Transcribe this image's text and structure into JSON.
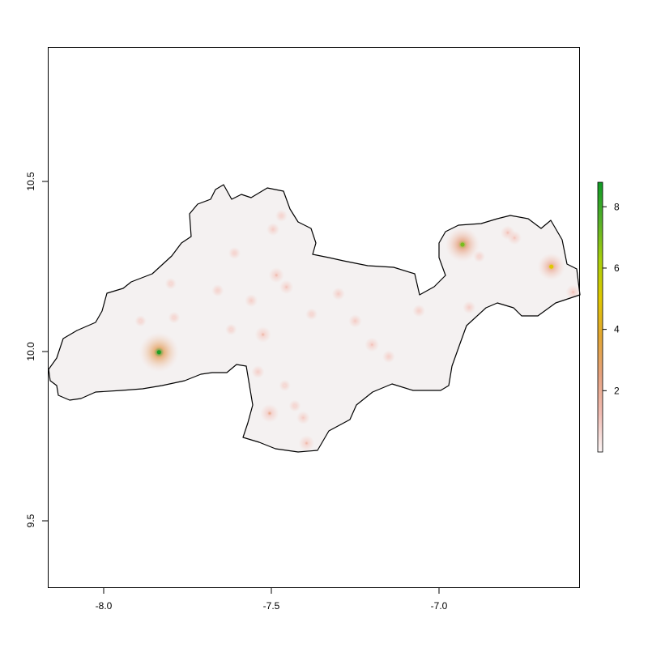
{
  "map": {
    "x_axis": {
      "range": [
        -8.16,
        -6.57
      ],
      "ticks": [
        {
          "value": -8.0,
          "label": "-8.0"
        },
        {
          "value": -7.5,
          "label": "-7.5"
        },
        {
          "value": -7.0,
          "label": "-7.0"
        }
      ]
    },
    "y_axis": {
      "range": [
        9.3,
        10.89
      ],
      "ticks": [
        {
          "value": 9.5,
          "label": "9.5"
        },
        {
          "value": 10.0,
          "label": "10.0"
        },
        {
          "value": 10.5,
          "label": "10.5"
        }
      ]
    },
    "legend": {
      "placement": "right",
      "range": [
        0,
        8.8
      ],
      "ticks": [
        {
          "value": 2,
          "label": "2"
        },
        {
          "value": 4,
          "label": "4"
        },
        {
          "value": 6,
          "label": "6"
        },
        {
          "value": 8,
          "label": "8"
        }
      ],
      "colors": [
        "#fbf5f5",
        "#f1bcb3",
        "#e6a27f",
        "#e2a632",
        "#dfc800",
        "#a7cf0c",
        "#55b02a",
        "#0f9a24"
      ]
    },
    "boundary_color": "#000000",
    "background_fill": "#f4f1f1",
    "hotspots": [
      {
        "lon": -7.835,
        "lat": 9.998,
        "value": 8.5
      },
      {
        "lon": -6.93,
        "lat": 10.315,
        "value": 7.0
      },
      {
        "lon": -6.665,
        "lat": 10.25,
        "value": 5.0
      },
      {
        "lon": -7.505,
        "lat": 9.818,
        "value": 2.5
      },
      {
        "lon": -7.525,
        "lat": 10.05,
        "value": 1.8
      },
      {
        "lon": -7.485,
        "lat": 10.225,
        "value": 1.6
      },
      {
        "lon": -7.395,
        "lat": 9.73,
        "value": 1.7
      },
      {
        "lon": -7.2,
        "lat": 10.02,
        "value": 1.3
      },
      {
        "lon": -7.455,
        "lat": 10.19,
        "value": 1.2
      },
      {
        "lon": -6.6,
        "lat": 10.175,
        "value": 1.4
      },
      {
        "lon": -6.795,
        "lat": 10.35,
        "value": 1.3
      },
      {
        "lon": -6.775,
        "lat": 10.335,
        "value": 1.2
      },
      {
        "lon": -7.25,
        "lat": 10.09,
        "value": 1.0
      },
      {
        "lon": -7.405,
        "lat": 9.805,
        "value": 1.0
      },
      {
        "lon": -7.495,
        "lat": 10.36,
        "value": 0.9
      },
      {
        "lon": -7.3,
        "lat": 10.17,
        "value": 0.9
      },
      {
        "lon": -7.56,
        "lat": 10.15,
        "value": 0.9
      },
      {
        "lon": -7.06,
        "lat": 10.12,
        "value": 0.8
      },
      {
        "lon": -7.15,
        "lat": 9.985,
        "value": 0.8
      },
      {
        "lon": -6.91,
        "lat": 10.13,
        "value": 0.9
      },
      {
        "lon": -7.54,
        "lat": 9.94,
        "value": 0.9
      },
      {
        "lon": -7.47,
        "lat": 10.4,
        "value": 0.7
      },
      {
        "lon": -7.61,
        "lat": 10.29,
        "value": 0.7
      },
      {
        "lon": -7.66,
        "lat": 10.18,
        "value": 0.7
      },
      {
        "lon": -7.79,
        "lat": 10.1,
        "value": 0.6
      },
      {
        "lon": -7.38,
        "lat": 10.11,
        "value": 0.6
      },
      {
        "lon": -7.0,
        "lat": 10.23,
        "value": 0.6
      },
      {
        "lon": -7.43,
        "lat": 9.84,
        "value": 0.6
      },
      {
        "lon": -7.62,
        "lat": 10.065,
        "value": 0.5
      },
      {
        "lon": -7.46,
        "lat": 9.9,
        "value": 0.5
      },
      {
        "lon": -6.88,
        "lat": 10.28,
        "value": 0.6
      },
      {
        "lon": -7.8,
        "lat": 10.2,
        "value": 0.5
      },
      {
        "lon": -7.89,
        "lat": 10.09,
        "value": 0.5
      }
    ]
  }
}
